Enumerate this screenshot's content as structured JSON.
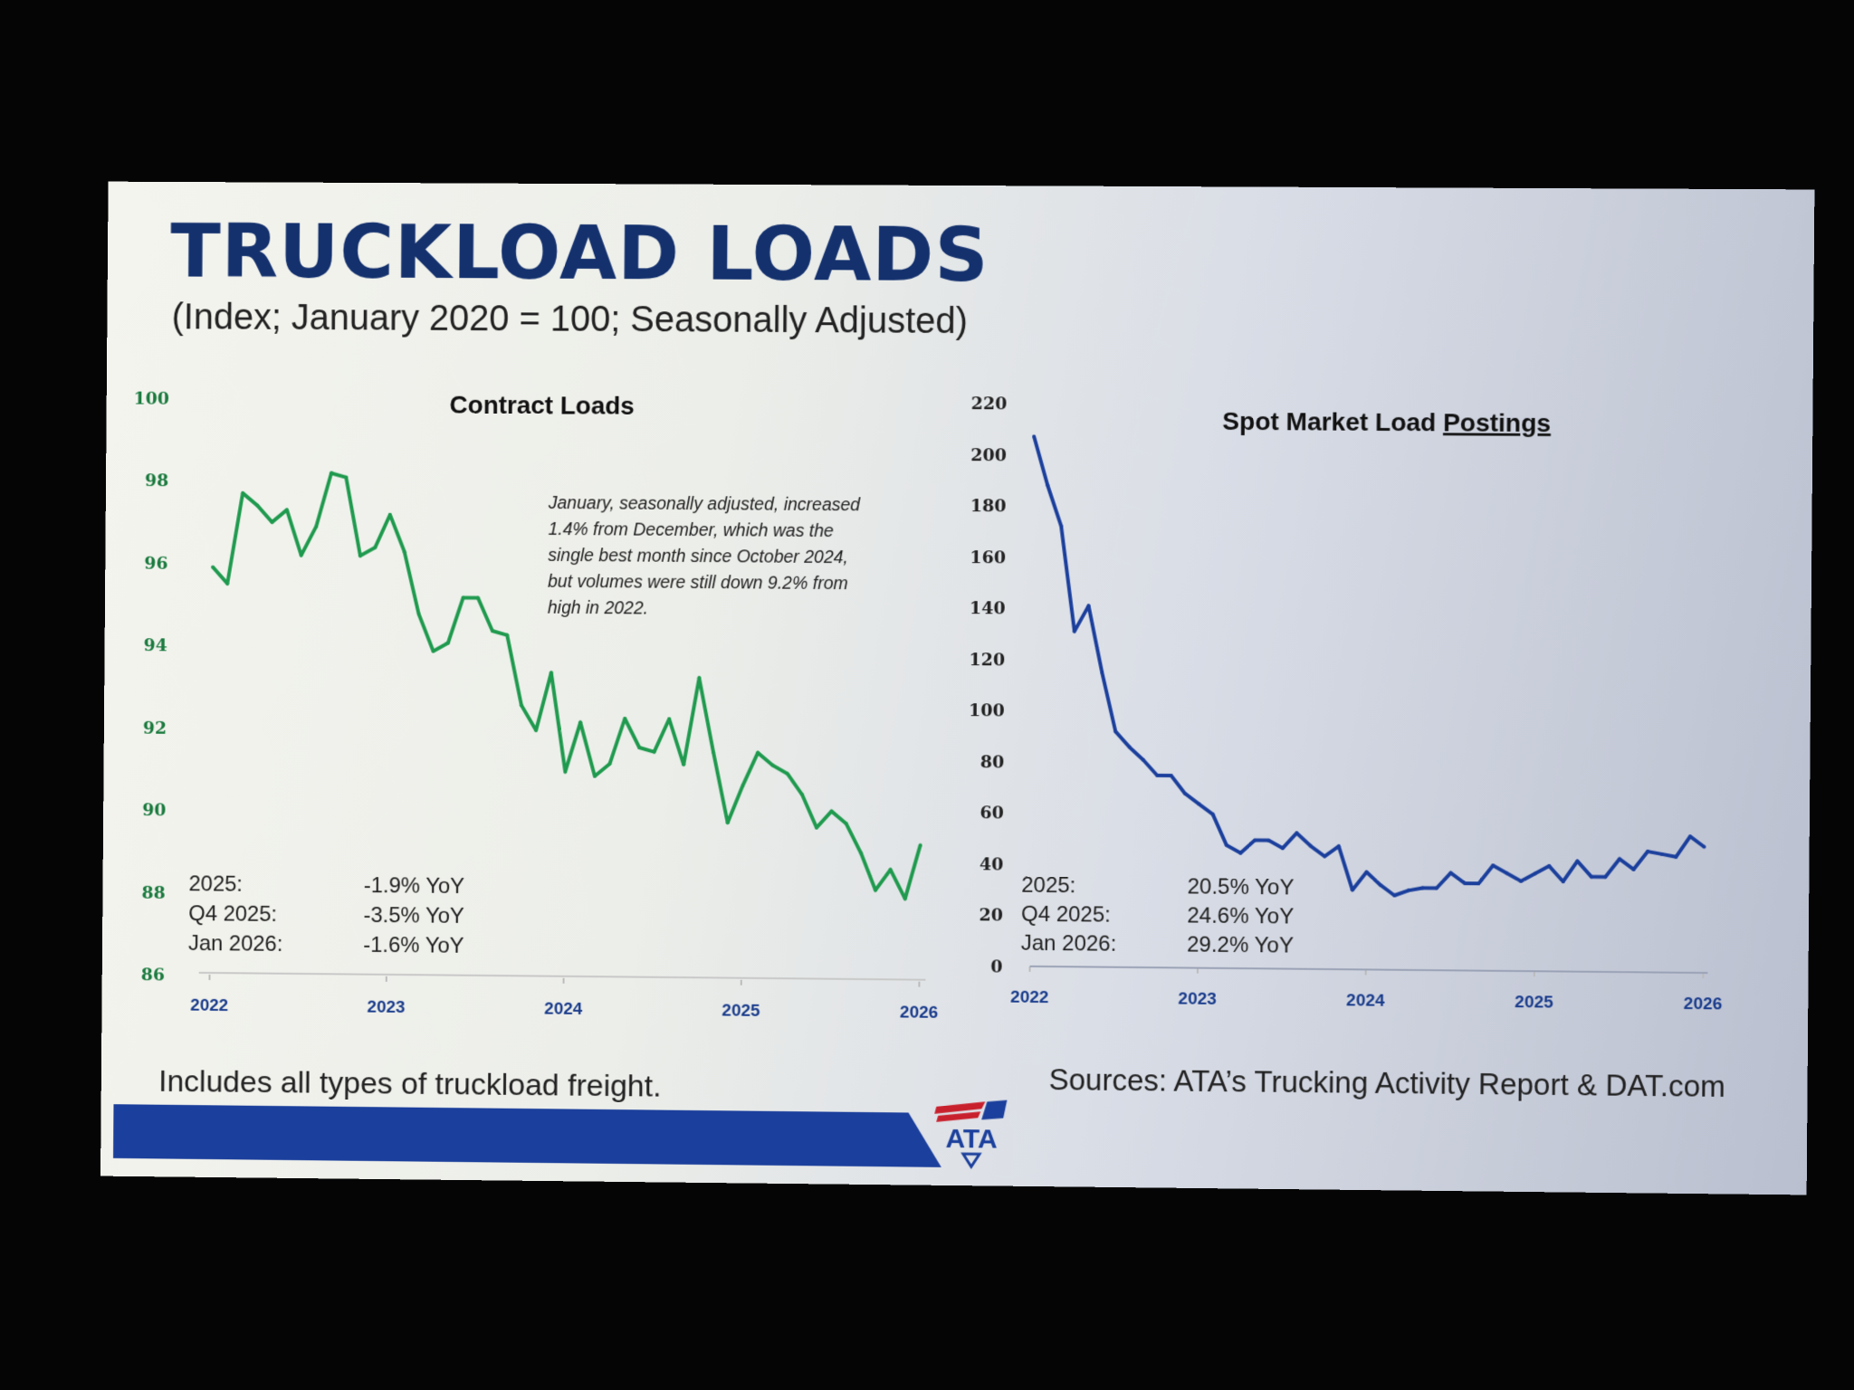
{
  "slide": {
    "title": "TRUCKLOAD LOADS",
    "subtitle": "(Index; January 2020 = 100; Seasonally Adjusted)",
    "footnote": "Includes all types of truckload freight.",
    "sources": "Sources: ATA’s Trucking Activity Report & DAT.com",
    "logo_text": "ATA",
    "colors": {
      "title": "#14316e",
      "contract_line": "#1f9a4e",
      "spot_line": "#1b3f9c",
      "bar": "#1b3f9c"
    }
  },
  "chart_data": [
    {
      "type": "line",
      "title": "Contract Loads",
      "ylim": [
        86,
        100
      ],
      "yticks": [
        "100",
        "98",
        "96",
        "94",
        "92",
        "90",
        "88",
        "86"
      ],
      "xticks": [
        "2022",
        "2023",
        "2024",
        "2025",
        "2026"
      ],
      "x_start": "Jan 2022",
      "x_end": "Jan 2026",
      "frequency": "monthly",
      "series": [
        {
          "name": "Contract Loads",
          "values": [
            95.9,
            95.5,
            97.7,
            97.4,
            97.0,
            97.3,
            96.2,
            96.9,
            98.2,
            98.1,
            96.2,
            96.4,
            97.2,
            96.3,
            94.8,
            93.9,
            94.1,
            95.2,
            95.2,
            94.4,
            94.3,
            92.6,
            92.0,
            93.4,
            91.0,
            92.2,
            90.9,
            91.2,
            92.3,
            91.6,
            91.5,
            92.3,
            91.2,
            93.3,
            91.5,
            89.8,
            90.7,
            91.5,
            91.2,
            91.0,
            90.5,
            89.7,
            90.1,
            89.8,
            89.1,
            88.2,
            88.7,
            88.0,
            89.3
          ]
        }
      ],
      "annotation": [
        "January, seasonally adjusted, increased",
        "1.4% from December, which was the",
        "single best month since October 2024,",
        "but volumes were still down 9.2% from",
        "high in 2022."
      ],
      "stats": [
        {
          "label": "2025:",
          "value": "-1.9% YoY"
        },
        {
          "label": "Q4 2025:",
          "value": "-3.5% YoY"
        },
        {
          "label": "Jan 2026:",
          "value": "-1.6% YoY"
        }
      ]
    },
    {
      "type": "line",
      "title_plain": "Spot Market Load ",
      "title_underlined": "Postings",
      "ylim": [
        0,
        220
      ],
      "yticks": [
        "220",
        "200",
        "180",
        "160",
        "140",
        "120",
        "100",
        "80",
        "60",
        "40",
        "20",
        "0"
      ],
      "xticks": [
        "2022",
        "2023",
        "2024",
        "2025",
        "2026"
      ],
      "x_start": "Jan 2022",
      "x_end": "Jan 2026",
      "frequency": "monthly",
      "series": [
        {
          "name": "Spot Market Load Postings",
          "values": [
            207,
            188,
            172,
            131,
            141,
            115,
            92,
            86,
            81,
            75,
            75,
            68,
            64,
            60,
            48,
            45,
            50,
            50,
            47,
            53,
            48,
            44,
            48,
            31,
            38,
            33,
            29,
            31,
            32,
            32,
            38,
            34,
            34,
            41,
            38,
            35,
            38,
            41,
            35,
            43,
            37,
            37,
            44,
            40,
            47,
            46,
            45,
            53,
            49
          ]
        }
      ],
      "stats": [
        {
          "label": "2025:",
          "value": "20.5% YoY"
        },
        {
          "label": "Q4 2025:",
          "value": "24.6% YoY"
        },
        {
          "label": "Jan 2026:",
          "value": "29.2% YoY"
        }
      ]
    }
  ]
}
